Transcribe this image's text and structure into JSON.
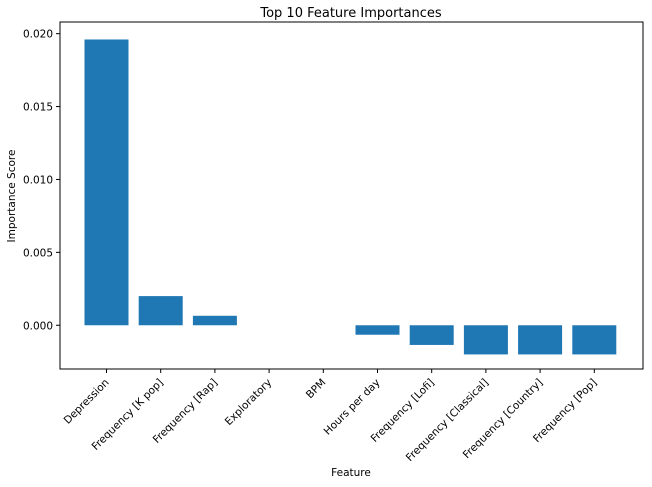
{
  "chart_data": {
    "type": "bar",
    "title": "Top 10 Feature Importances",
    "xlabel": "Feature",
    "ylabel": "Importance Score",
    "categories": [
      "Depression",
      "Frequency [K pop]",
      "Frequency [Rap]",
      "Exploratory",
      "BPM",
      "Hours per day",
      "Frequency [Lofi]",
      "Frequency [Classical]",
      "Frequency [Country]",
      "Frequency [Pop]"
    ],
    "values": [
      0.0196,
      0.002,
      0.00065,
      0,
      0,
      -0.00065,
      -0.00135,
      -0.002,
      -0.002,
      -0.002
    ],
    "ylim": [
      -0.003,
      0.0208
    ],
    "yticks": [
      0.0,
      0.005,
      0.01,
      0.015,
      0.02
    ],
    "ytick_labels": [
      "0.000",
      "0.005",
      "0.010",
      "0.015",
      "0.020"
    ],
    "bar_color": "#1f77b4",
    "grid": false,
    "legend": "none"
  }
}
